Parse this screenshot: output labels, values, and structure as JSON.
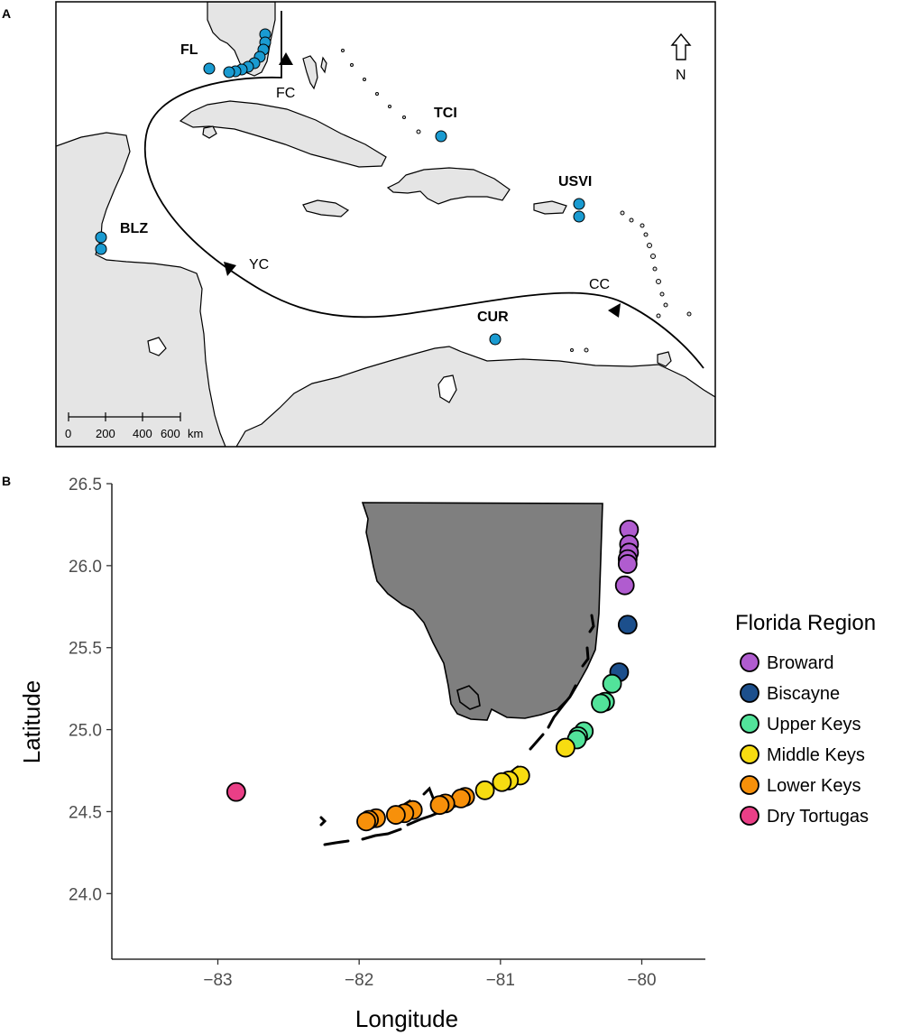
{
  "panel_a": {
    "letter": "A",
    "site_labels": [
      "FL",
      "TCI",
      "USVI",
      "BLZ",
      "CUR"
    ],
    "current_labels": [
      "FC",
      "YC",
      "CC"
    ],
    "north_label": "N",
    "scale_bar": {
      "ticks": [
        "0",
        "200",
        "400",
        "600"
      ],
      "unit": "km"
    },
    "colors": {
      "land": "#e5e5e5",
      "site_point": "#1a9bd1",
      "border": "#000000"
    }
  },
  "panel_b": {
    "letter": "B",
    "colors": {
      "land": "#7f7f7f"
    }
  },
  "chart_data": {
    "type": "scatter",
    "title": "",
    "xlabel": "Longitude",
    "ylabel": "Latitude",
    "xlim": [
      -83.75,
      -79.55
    ],
    "ylim": [
      23.6,
      26.5
    ],
    "xticks": [
      -83,
      -82,
      -81,
      -80
    ],
    "yticks": [
      24.0,
      24.5,
      25.0,
      25.5,
      26.0,
      26.5
    ],
    "xtick_labels": [
      "−83",
      "−82",
      "−81",
      "−80"
    ],
    "ytick_labels": [
      "24.0",
      "24.5",
      "25.0",
      "25.5",
      "26.0",
      "26.5"
    ],
    "grid": false,
    "legend": {
      "title": "Florida Region",
      "placement": "right"
    },
    "series": [
      {
        "name": "Broward",
        "color": "#b05ccf",
        "points": [
          [
            -80.09,
            26.22
          ],
          [
            -80.09,
            26.13
          ],
          [
            -80.09,
            26.08
          ],
          [
            -80.1,
            26.04
          ],
          [
            -80.1,
            26.01
          ],
          [
            -80.12,
            25.88
          ]
        ]
      },
      {
        "name": "Biscayne",
        "color": "#1c4f8c",
        "points": [
          [
            -80.1,
            25.64
          ],
          [
            -80.16,
            25.35
          ]
        ]
      },
      {
        "name": "Upper Keys",
        "color": "#52e39a",
        "points": [
          [
            -80.21,
            25.28
          ],
          [
            -80.26,
            25.17
          ],
          [
            -80.29,
            25.16
          ],
          [
            -80.41,
            24.99
          ],
          [
            -80.45,
            24.96
          ],
          [
            -80.46,
            24.94
          ]
        ]
      },
      {
        "name": "Middle Keys",
        "color": "#f7dc11",
        "points": [
          [
            -80.54,
            24.89
          ],
          [
            -80.86,
            24.72
          ],
          [
            -80.94,
            24.69
          ],
          [
            -80.99,
            24.68
          ],
          [
            -81.11,
            24.63
          ]
        ]
      },
      {
        "name": "Lower Keys",
        "color": "#f7900a",
        "points": [
          [
            -81.25,
            24.59
          ],
          [
            -81.28,
            24.58
          ],
          [
            -81.39,
            24.55
          ],
          [
            -81.43,
            24.54
          ],
          [
            -81.62,
            24.51
          ],
          [
            -81.68,
            24.49
          ],
          [
            -81.74,
            24.48
          ],
          [
            -81.88,
            24.46
          ],
          [
            -81.93,
            24.45
          ],
          [
            -81.95,
            24.44
          ]
        ]
      },
      {
        "name": "Dry Tortugas",
        "color": "#ea3f87",
        "points": [
          [
            -82.87,
            24.62
          ]
        ]
      }
    ]
  }
}
